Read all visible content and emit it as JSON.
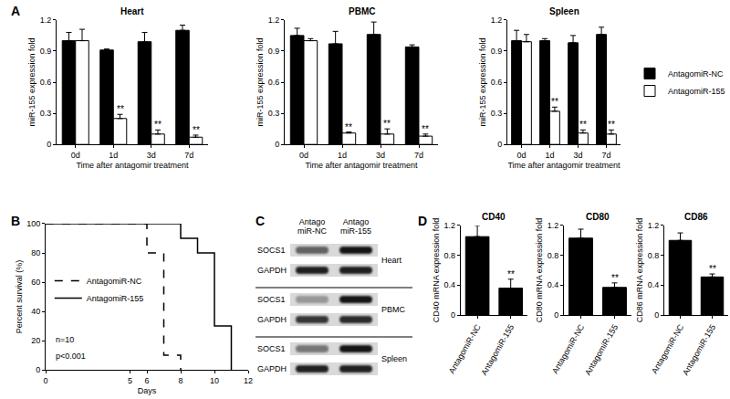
{
  "panel_labels": [
    "A",
    "B",
    "C",
    "D"
  ],
  "chart_data": [
    {
      "type": "bar",
      "title": "Heart",
      "x_label": "Time after antagomir treatment",
      "y_label": "miR-155 expression fold",
      "categories": [
        "0d",
        "1d",
        "3d",
        "7d"
      ],
      "series": [
        {
          "name": "AntagomiR-NC",
          "color": "#000000",
          "values": [
            1.0,
            0.91,
            0.99,
            1.1
          ],
          "errors": [
            0.08,
            0.01,
            0.09,
            0.05
          ]
        },
        {
          "name": "AntagomiR-155",
          "color": "#ffffff",
          "values": [
            1.0,
            0.25,
            0.1,
            0.07
          ],
          "errors": [
            0.11,
            0.04,
            0.04,
            0.02
          ],
          "significance": [
            null,
            "**",
            "**",
            "**"
          ]
        }
      ],
      "ylim": [
        0,
        1.2
      ],
      "yticks": [
        0,
        0.3,
        0.6,
        0.9,
        1.2
      ],
      "grid": false
    },
    {
      "type": "bar",
      "title": "PBMC",
      "x_label": "Time after antagomir treatment",
      "y_label": "miR-155 expression fold",
      "categories": [
        "0d",
        "1d",
        "3d",
        "7d"
      ],
      "series": [
        {
          "name": "AntagomiR-NC",
          "color": "#000000",
          "values": [
            1.05,
            0.97,
            1.06,
            0.94
          ],
          "errors": [
            0.07,
            0.12,
            0.12,
            0.02
          ]
        },
        {
          "name": "AntagomiR-155",
          "color": "#ffffff",
          "values": [
            1.0,
            0.11,
            0.1,
            0.08
          ],
          "errors": [
            0.02,
            0.01,
            0.05,
            0.02
          ],
          "significance": [
            null,
            "**",
            "**",
            "**"
          ]
        }
      ],
      "ylim": [
        0,
        1.2
      ],
      "yticks": [
        0,
        0.3,
        0.6,
        0.9,
        1.2
      ],
      "grid": false
    },
    {
      "type": "bar",
      "title": "Spleen",
      "x_label": "Time after antagomir treatment",
      "y_label": "miR-155 expression fold",
      "categories": [
        "0d",
        "1d",
        "3d",
        "7d"
      ],
      "series": [
        {
          "name": "AntagomiR-NC",
          "color": "#000000",
          "values": [
            1.0,
            1.0,
            0.98,
            1.06
          ],
          "errors": [
            0.1,
            0.02,
            0.07,
            0.07
          ]
        },
        {
          "name": "AntagomiR-155",
          "color": "#ffffff",
          "values": [
            0.99,
            0.32,
            0.11,
            0.1
          ],
          "errors": [
            0.07,
            0.04,
            0.03,
            0.04
          ],
          "significance": [
            null,
            "**",
            "**",
            "**"
          ]
        }
      ],
      "ylim": [
        0,
        1.2
      ],
      "yticks": [
        0,
        0.3,
        0.6,
        0.9,
        1.2
      ],
      "grid": false,
      "legend": "right"
    },
    {
      "type": "step",
      "x_label": "Days",
      "y_label": "Percent survival (%)",
      "series": [
        {
          "name": "AntagomiR-NC",
          "color": "#000000",
          "line_style": "dashed",
          "x": [
            0,
            6,
            7,
            8
          ],
          "values": [
            100,
            80,
            10,
            0
          ]
        },
        {
          "name": "AntagomiR-155",
          "color": "#000000",
          "line_style": "solid",
          "x": [
            0,
            8,
            9,
            10,
            11
          ],
          "values": [
            100,
            90,
            80,
            30,
            0
          ]
        }
      ],
      "xlim": [
        0,
        12
      ],
      "xticks": [
        0,
        5,
        6,
        8,
        10,
        12
      ],
      "ylim": [
        0,
        100
      ],
      "yticks": [
        0,
        20,
        40,
        60,
        80,
        100
      ],
      "annotations": [
        "n=10",
        "p<0.001"
      ],
      "grid": false,
      "legend": "left"
    },
    {
      "type": "bar",
      "title": "CD40",
      "y_label": "CD40 mRNA expression fold",
      "categories": [
        "AntagomiR-NC",
        "AntagomiR-155"
      ],
      "color": "#000000",
      "values": [
        1.05,
        0.36
      ],
      "errors": [
        0.15,
        0.12
      ],
      "significance": [
        null,
        "**"
      ],
      "ylim": [
        0,
        1.2
      ],
      "yticks": [
        0,
        0.4,
        0.8,
        1.2
      ],
      "grid": false
    },
    {
      "type": "bar",
      "title": "CD80",
      "y_label": "CD80 mRNA expression fold",
      "categories": [
        "AntagomiR-NC",
        "AntagomiR-155"
      ],
      "color": "#000000",
      "values": [
        1.03,
        0.37
      ],
      "errors": [
        0.12,
        0.06
      ],
      "significance": [
        null,
        "**"
      ],
      "ylim": [
        0,
        1.2
      ],
      "yticks": [
        0,
        0.4,
        0.8,
        1.2
      ],
      "grid": false
    },
    {
      "type": "bar",
      "title": "CD86",
      "y_label": "CD86 mRNA expression fold",
      "categories": [
        "AntagomiR-NC",
        "AntagomiR-155"
      ],
      "color": "#000000",
      "values": [
        1.0,
        0.51
      ],
      "errors": [
        0.1,
        0.04
      ],
      "significance": [
        null,
        "**"
      ],
      "ylim": [
        0,
        1.2
      ],
      "yticks": [
        0,
        0.4,
        0.8,
        1.2
      ],
      "grid": false
    }
  ],
  "western_blot": {
    "columns": [
      [
        "Antago",
        "miR-NC"
      ],
      [
        "Antago",
        "miR-155"
      ]
    ],
    "groups": [
      {
        "tissue": "Heart",
        "rows": [
          {
            "protein": "SOCS1",
            "intensity": [
              0.55,
              0.9
            ]
          },
          {
            "protein": "GAPDH",
            "intensity": [
              0.85,
              0.85
            ]
          }
        ]
      },
      {
        "tissue": "PBMC",
        "rows": [
          {
            "protein": "SOCS1",
            "intensity": [
              0.3,
              0.9
            ]
          },
          {
            "protein": "GAPDH",
            "intensity": [
              0.75,
              0.8
            ]
          }
        ]
      },
      {
        "tissue": "Spleen",
        "rows": [
          {
            "protein": "SOCS1",
            "intensity": [
              0.45,
              0.9
            ]
          },
          {
            "protein": "GAPDH",
            "intensity": [
              0.85,
              0.85
            ]
          }
        ]
      }
    ]
  }
}
